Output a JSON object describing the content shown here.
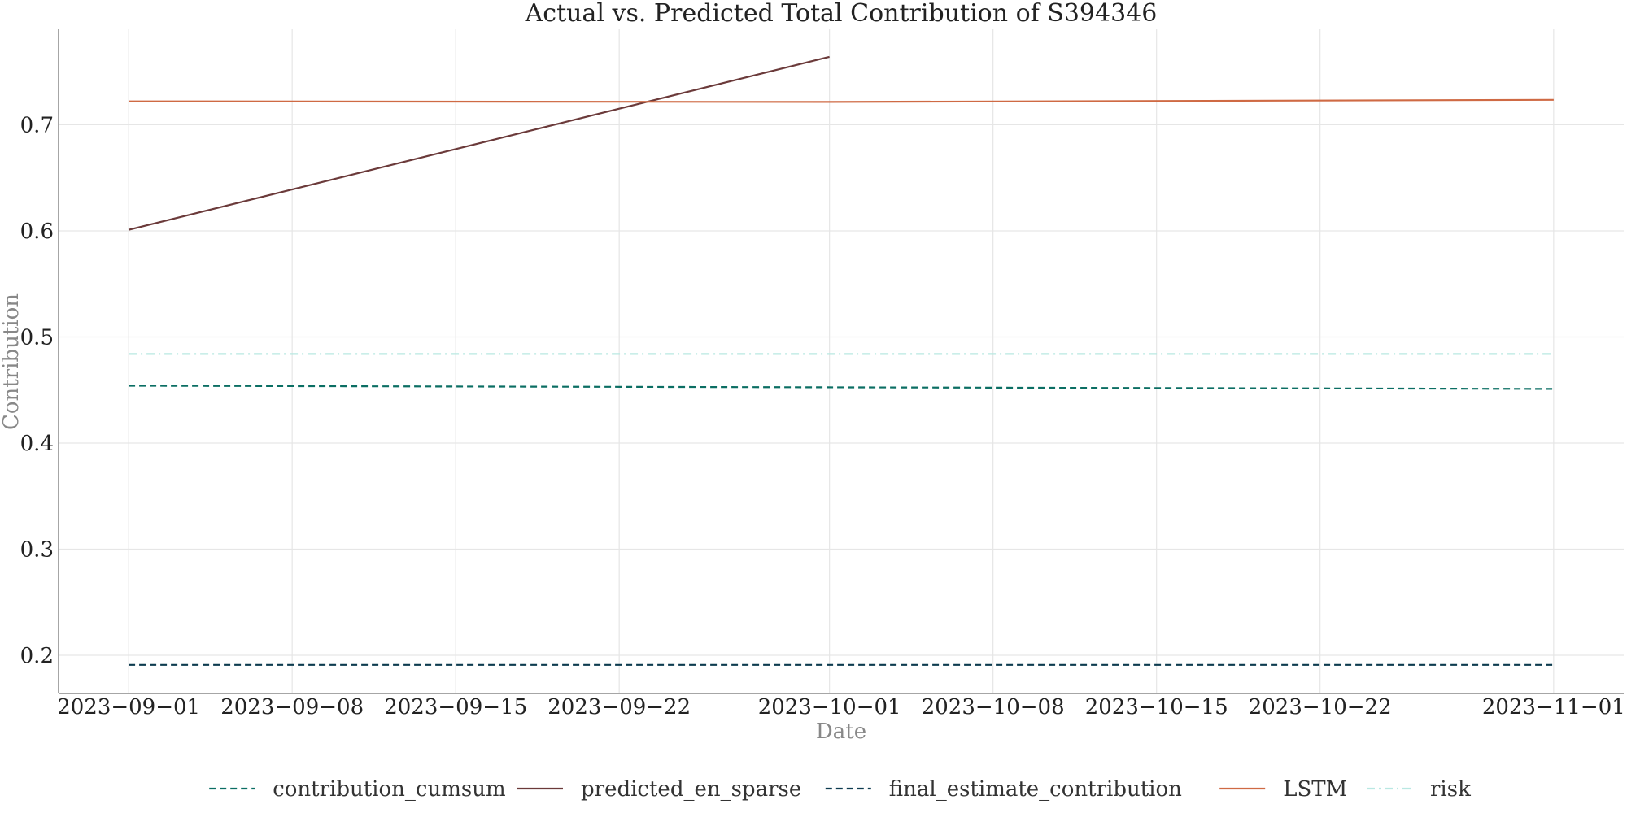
{
  "chart_data": {
    "type": "line",
    "title": "Actual vs. Predicted Total Contribution of S394346",
    "xlabel": "Date",
    "ylabel": "Contribution",
    "x_ticks": [
      "2023-09-01",
      "2023-09-08",
      "2023-09-15",
      "2023-09-22",
      "2023-10-01",
      "2023-10-08",
      "2023-10-15",
      "2023-10-22",
      "2023-11-01"
    ],
    "x_tick_labels": [
      "2023−09−01",
      "2023−09−08",
      "2023−09−15",
      "2023−09−22",
      "2023−10−01",
      "2023−10−08",
      "2023−10−15",
      "2023−10−22",
      "2023−11−01"
    ],
    "xlim": [
      "2023-08-29",
      "2023-11-04"
    ],
    "y_ticks": [
      0.2,
      0.3,
      0.4,
      0.5,
      0.6,
      0.7
    ],
    "y_tick_labels": [
      "0.2",
      "0.3",
      "0.4",
      "0.5",
      "0.6",
      "0.7"
    ],
    "ylim": [
      0.164,
      0.79
    ],
    "grid": true,
    "legend_position": "bottom",
    "series": [
      {
        "name": "contribution_cumsum",
        "color": "#0b6e63",
        "dash": "dashed",
        "points": [
          [
            "2023-09-01",
            0.454
          ],
          [
            "2023-11-01",
            0.451
          ]
        ]
      },
      {
        "name": "predicted_en_sparse",
        "color": "#6b3a3a",
        "dash": "solid",
        "points": [
          [
            "2023-09-01",
            0.601
          ],
          [
            "2023-10-01",
            0.764
          ]
        ]
      },
      {
        "name": "final_estimate_contribution",
        "color": "#0d3b4f",
        "dash": "dashed",
        "points": [
          [
            "2023-09-01",
            0.191
          ],
          [
            "2023-11-01",
            0.191
          ]
        ]
      },
      {
        "name": "LSTM",
        "color": "#cf6a44",
        "dash": "solid",
        "points": [
          [
            "2023-09-01",
            0.722
          ],
          [
            "2023-10-01",
            0.7215
          ],
          [
            "2023-11-01",
            0.7235
          ]
        ]
      },
      {
        "name": "risk",
        "color": "#b9e8e2",
        "dash": "dashdot",
        "points": [
          [
            "2023-09-01",
            0.484
          ],
          [
            "2023-11-01",
            0.484
          ]
        ]
      }
    ]
  }
}
